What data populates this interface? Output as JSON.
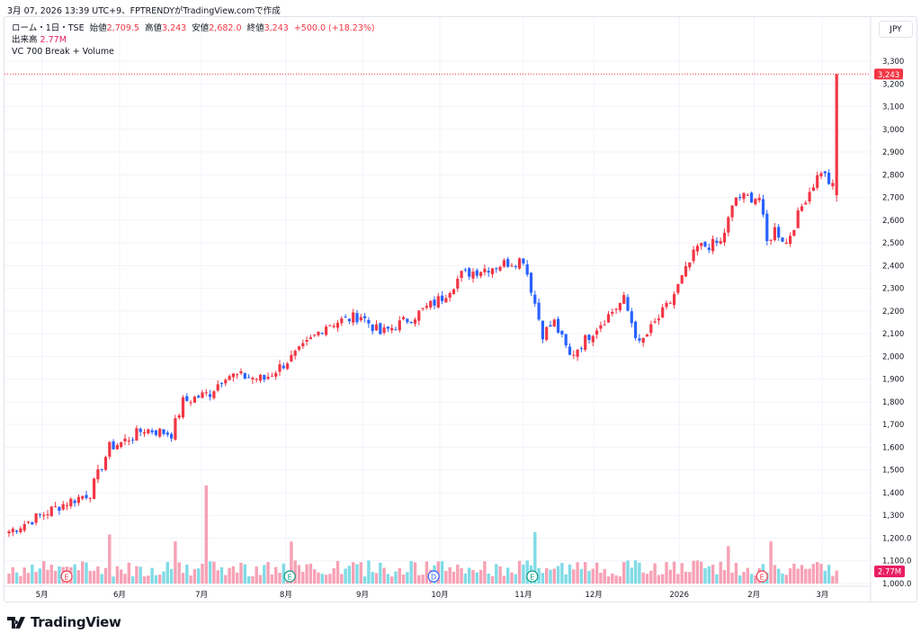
{
  "caption": "3月 07, 2026 13:39 UTC+9、FPTRENDYがTradingView.comで作成",
  "legend": {
    "symbol": "ローム・1日・TSE",
    "open_label": "始値",
    "open": "2,709.5",
    "high_label": "高値",
    "high": "3,243",
    "low_label": "安値",
    "low": "2,682.0",
    "close_label": "終値",
    "close": "3,243",
    "change": "+500.0 (+18.23%)",
    "volume_label": "出来高",
    "volume": "2.77M",
    "indicator": "VC 700 Break + Volume"
  },
  "currency": "JPY",
  "brand": "TradingView",
  "colors": {
    "up": "#f23645",
    "down": "#2962ff",
    "vol_up": "#f7a1b5",
    "vol_down": "#7fdbe6",
    "last_price": "#f23645",
    "last_volume": "#e91e63"
  },
  "chart_data": {
    "type": "candlestick",
    "days": 215,
    "close_anchors": [
      [
        0,
        1230
      ],
      [
        7,
        1290
      ],
      [
        14,
        1350
      ],
      [
        21,
        1400
      ],
      [
        26,
        1600
      ],
      [
        29,
        1620
      ],
      [
        35,
        1680
      ],
      [
        42,
        1660
      ],
      [
        45,
        1800
      ],
      [
        52,
        1840
      ],
      [
        56,
        1920
      ],
      [
        66,
        1900
      ],
      [
        75,
        2020
      ],
      [
        82,
        2140
      ],
      [
        91,
        2180
      ],
      [
        96,
        2100
      ],
      [
        105,
        2180
      ],
      [
        112,
        2260
      ],
      [
        117,
        2360
      ],
      [
        126,
        2400
      ],
      [
        133,
        2430
      ],
      [
        135,
        2300
      ],
      [
        138,
        2100
      ],
      [
        141,
        2150
      ],
      [
        145,
        2000
      ],
      [
        152,
        2130
      ],
      [
        159,
        2250
      ],
      [
        163,
        2050
      ],
      [
        171,
        2240
      ],
      [
        178,
        2480
      ],
      [
        184,
        2500
      ],
      [
        188,
        2700
      ],
      [
        194,
        2700
      ],
      [
        196,
        2500
      ],
      [
        198,
        2560
      ],
      [
        201,
        2500
      ],
      [
        206,
        2700
      ],
      [
        210,
        2820
      ],
      [
        213,
        2743
      ]
    ],
    "last_candle": {
      "open": 2709.5,
      "high": 3243,
      "low": 2682.0,
      "close": 3243
    },
    "volume_last": "2.77M",
    "volume_spikes_M": [
      [
        26,
        10.5
      ],
      [
        43,
        9
      ],
      [
        51,
        21
      ],
      [
        73,
        9
      ],
      [
        136,
        11
      ],
      [
        186,
        8
      ],
      [
        197,
        9
      ]
    ],
    "y_ticks": [
      "1,000.0",
      "1,100.0",
      "1,200.0",
      "1,300",
      "1,400",
      "1,500",
      "1,600",
      "1,700",
      "1,800",
      "1,900",
      "2,000",
      "2,100",
      "2,200",
      "2,300",
      "2,400",
      "2,500",
      "2,600",
      "2,700",
      "2,800",
      "2,900",
      "3,000",
      "3,100",
      "3,200",
      "3,300"
    ],
    "ylim": [
      1000,
      3300
    ],
    "last_price_label": "3,243",
    "x_ticks": [
      {
        "label": "5月",
        "day": 8.5
      },
      {
        "label": "6月",
        "day": 28.6
      },
      {
        "label": "7月",
        "day": 49.8
      },
      {
        "label": "8月",
        "day": 71.6
      },
      {
        "label": "9月",
        "day": 91.4
      },
      {
        "label": "10月",
        "day": 111.4
      },
      {
        "label": "11月",
        "day": 133
      },
      {
        "label": "12月",
        "day": 151.2
      },
      {
        "label": "2026",
        "day": 173.3
      },
      {
        "label": "2月",
        "day": 192.6
      },
      {
        "label": "3月",
        "day": 210.3
      }
    ],
    "events": [
      {
        "type": "E",
        "day": 14.9,
        "color": "#f23645"
      },
      {
        "type": "E",
        "day": 72.6,
        "color": "#089981"
      },
      {
        "type": "D",
        "day": 109.8,
        "color": "#2962ff"
      },
      {
        "type": "E",
        "day": 135.3,
        "color": "#089981"
      },
      {
        "type": "E",
        "day": 194.7,
        "color": "#f23645"
      }
    ]
  }
}
